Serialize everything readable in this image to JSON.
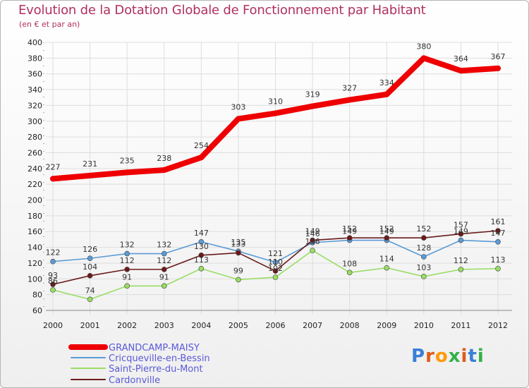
{
  "chart_data": {
    "type": "line",
    "title": "Evolution de la Dotation Globale de Fonctionnement par Habitant",
    "subtitle": "(en € et par an)",
    "x": [
      "2000",
      "2001",
      "2002",
      "2003",
      "2004",
      "2005",
      "2006",
      "2007",
      "2008",
      "2009",
      "2010",
      "2011",
      "2012"
    ],
    "ylim": [
      60,
      400
    ],
    "yticks": [
      60,
      80,
      100,
      120,
      140,
      160,
      180,
      200,
      220,
      240,
      260,
      280,
      300,
      320,
      340,
      360,
      380,
      400
    ],
    "series": [
      {
        "name": "GRANDCAMP-MAISY",
        "color": "#ee0000",
        "values": [
          227,
          231,
          235,
          238,
          254,
          303,
          310,
          319,
          327,
          334,
          380,
          364,
          367
        ],
        "labels": [
          "227",
          "231",
          "235",
          "238",
          "254",
          "303",
          "310",
          "319",
          "327",
          "334",
          "380",
          "364",
          "367"
        ]
      },
      {
        "name": "Cricqueville-en-Bessin",
        "color": "#5b9bd5",
        "values": [
          122,
          126,
          132,
          132,
          147,
          135,
          121,
          146,
          149,
          149,
          128,
          149,
          147
        ],
        "labels": [
          "122",
          "126",
          "132",
          "132",
          "147",
          "135",
          "121",
          "146",
          "149",
          "149",
          "128",
          "149",
          "147"
        ]
      },
      {
        "name": "Saint-Pierre-du-Mont",
        "color": "#99dd66",
        "values": [
          86,
          74,
          91,
          91,
          113,
          99,
          102,
          136,
          108,
          114,
          103,
          112,
          113
        ],
        "labels": [
          "86",
          "74",
          "91",
          "91",
          "113",
          "99",
          "102",
          "136",
          "108",
          "114",
          "103",
          "112",
          "113"
        ]
      },
      {
        "name": "Cardonville",
        "color": "#6b1a1a",
        "values": [
          93,
          104,
          112,
          112,
          130,
          133,
          110,
          149,
          152,
          152,
          152,
          157,
          161
        ],
        "labels": [
          "93",
          "104",
          "112",
          "112",
          "130",
          "133",
          "110",
          "149",
          "152",
          "152",
          "152",
          "157",
          "161"
        ]
      }
    ]
  },
  "logo": {
    "text": "Proxiti"
  }
}
